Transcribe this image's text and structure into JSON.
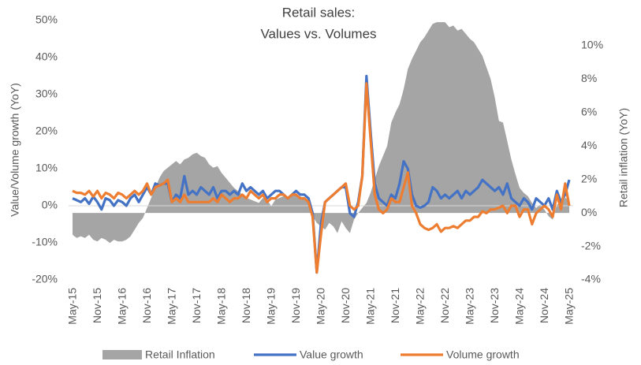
{
  "chart_data": {
    "type": "combo",
    "title": "Retail sales:",
    "subtitle": "Values vs. Volumes",
    "y_label": "Value/Volume  growth (YoY)",
    "y2_label": "Retail inflation (YoY)",
    "categories": [
      "May-15",
      null,
      null,
      null,
      null,
      null,
      "Nov-15",
      null,
      null,
      null,
      null,
      null,
      "May-16",
      null,
      null,
      null,
      null,
      null,
      "Nov-16",
      null,
      null,
      null,
      null,
      null,
      "May-17",
      null,
      null,
      null,
      null,
      null,
      "Nov-17",
      null,
      null,
      null,
      null,
      null,
      "May-18",
      null,
      null,
      null,
      null,
      null,
      "Nov-18",
      null,
      null,
      null,
      null,
      null,
      "May-19",
      null,
      null,
      null,
      null,
      null,
      "Nov-19",
      null,
      null,
      null,
      null,
      null,
      "May-20",
      null,
      null,
      null,
      null,
      null,
      "Nov-20",
      null,
      null,
      null,
      null,
      null,
      "May-21",
      null,
      null,
      null,
      null,
      null,
      "Nov-21",
      null,
      null,
      null,
      null,
      null,
      "May-22",
      null,
      null,
      null,
      null,
      null,
      "Nov-22",
      null,
      null,
      null,
      null,
      null,
      "May-23",
      null,
      null,
      null,
      null,
      null,
      "Nov-23",
      null,
      null,
      null,
      null,
      null,
      "May-24",
      null,
      null,
      null,
      null,
      null,
      "Nov-24",
      null,
      null,
      null,
      null,
      null,
      "May-25"
    ],
    "ylim": [
      -20,
      50
    ],
    "yticks": [
      {
        "value": -20,
        "label": "-20%"
      },
      {
        "value": -10,
        "label": "-10%"
      },
      {
        "value": 0,
        "label": "0%"
      },
      {
        "value": 10,
        "label": "10%"
      },
      {
        "value": 20,
        "label": "20%"
      },
      {
        "value": 30,
        "label": "30%"
      },
      {
        "value": 40,
        "label": "40%"
      },
      {
        "value": 50,
        "label": "50%"
      }
    ],
    "y2lim": [
      -4,
      11.5
    ],
    "y2ticks": [
      {
        "value": -4,
        "label": "-4%"
      },
      {
        "value": -2,
        "label": "-2%"
      },
      {
        "value": 0,
        "label": "0%"
      },
      {
        "value": 2,
        "label": "2%"
      },
      {
        "value": 4,
        "label": "4%"
      },
      {
        "value": 6,
        "label": "6%"
      },
      {
        "value": 8,
        "label": "8%"
      },
      {
        "value": 10,
        "label": "10%"
      }
    ],
    "legend": "bottom",
    "series": [
      {
        "name": "Retail Inflation",
        "kind": "area",
        "axis": "y2",
        "color": "#a5a5a5",
        "values": [
          -1.3,
          -1.5,
          -1.4,
          -1.5,
          -1.3,
          -1.6,
          -1.7,
          -1.5,
          -1.6,
          -1.8,
          -1.6,
          -1.7,
          -1.7,
          -1.6,
          -1.4,
          -1.0,
          -0.6,
          -0.3,
          0.3,
          0.9,
          1.5,
          2.1,
          2.5,
          2.7,
          2.9,
          3.1,
          2.9,
          3.2,
          3.3,
          3.5,
          3.6,
          3.4,
          3.3,
          2.9,
          2.7,
          2.8,
          2.4,
          2.1,
          1.8,
          1.5,
          1.3,
          1.1,
          0.9,
          0.8,
          0.7,
          0.6,
          0.9,
          0.8,
          0.4,
          0.8,
          0.9,
          1.0,
          0.9,
          1.0,
          1.1,
          1.0,
          0.8,
          0.6,
          -0.2,
          -0.6,
          -0.8,
          -1.0,
          -0.6,
          -0.8,
          -1.2,
          -0.5,
          -0.9,
          -1.2,
          -0.4,
          0.0,
          0.3,
          0.6,
          1.2,
          2.0,
          2.8,
          3.4,
          4.0,
          5.4,
          6.0,
          6.5,
          7.4,
          8.6,
          9.2,
          9.7,
          10.2,
          10.5,
          10.9,
          11.3,
          11.4,
          11.4,
          11.4,
          11.1,
          11.2,
          10.9,
          11.0,
          10.7,
          10.4,
          10.2,
          9.8,
          9.4,
          8.7,
          8.0,
          6.9,
          5.5,
          5.4,
          4.3,
          3.2,
          2.3,
          1.5,
          1.2,
          1.0,
          0.6,
          0.3,
          0.5,
          0.2,
          -0.2,
          -0.4,
          0.5,
          0.6,
          0.9,
          0.8
        ]
      },
      {
        "name": "Value growth",
        "kind": "line",
        "color": "#4472c4",
        "values": [
          2,
          1.5,
          1,
          2,
          0.5,
          2.5,
          1,
          -1,
          2,
          1.5,
          0,
          1.5,
          1,
          0,
          2,
          3,
          1,
          3,
          5,
          3,
          6,
          5.5,
          6,
          6,
          1,
          3,
          2,
          8,
          3,
          4,
          3,
          5,
          4,
          3,
          5,
          2,
          4,
          4,
          3,
          4,
          3,
          6,
          4,
          5,
          4,
          3,
          4,
          2,
          3,
          4,
          4,
          3,
          2,
          3,
          4,
          3,
          3,
          2,
          -2,
          -18,
          -5,
          1,
          2,
          3,
          4,
          5,
          5,
          -2,
          -3,
          1,
          8,
          35,
          20,
          6,
          2,
          1,
          0,
          3,
          2,
          6,
          12,
          10,
          3,
          0,
          -0.5,
          0,
          1,
          5,
          4,
          2,
          3,
          2,
          3,
          4,
          2,
          4,
          3,
          4,
          5,
          7,
          6,
          5,
          4,
          5,
          3,
          6,
          2,
          1,
          0,
          2,
          1,
          -1,
          2,
          1,
          0,
          2,
          -1,
          4,
          1,
          3,
          7
        ]
      },
      {
        "name": "Volume growth",
        "kind": "line",
        "color": "#ed7d31",
        "values": [
          4,
          3.5,
          3.5,
          3,
          4,
          2.5,
          4,
          2,
          3.5,
          3,
          2,
          3.5,
          3,
          2,
          3,
          4,
          3,
          4,
          6,
          3,
          5,
          5.5,
          6,
          7,
          1,
          2,
          1,
          3,
          1,
          1,
          1,
          1,
          1,
          1,
          2,
          1,
          3,
          2,
          1,
          2,
          2,
          3,
          2,
          4,
          3,
          2,
          3,
          1,
          2,
          2,
          3,
          3,
          2,
          3,
          3,
          2,
          2,
          1,
          -3,
          -18,
          -8,
          1,
          2,
          3,
          4,
          5,
          6,
          0,
          -1,
          0,
          8,
          33,
          18,
          3,
          -1,
          -2,
          -1,
          2,
          1,
          1,
          5,
          9,
          0,
          -2,
          -5,
          -6,
          -6.5,
          -6,
          -5,
          -7,
          -6,
          -6,
          -5.5,
          -6,
          -5,
          -4,
          -4,
          -3,
          -3,
          -1.5,
          -2,
          -1,
          -1,
          -0.5,
          0,
          -2,
          0,
          0,
          -3,
          -1,
          -1,
          -5,
          -2,
          -1,
          0,
          -1,
          -3,
          3,
          -1,
          6,
          0
        ]
      }
    ]
  }
}
